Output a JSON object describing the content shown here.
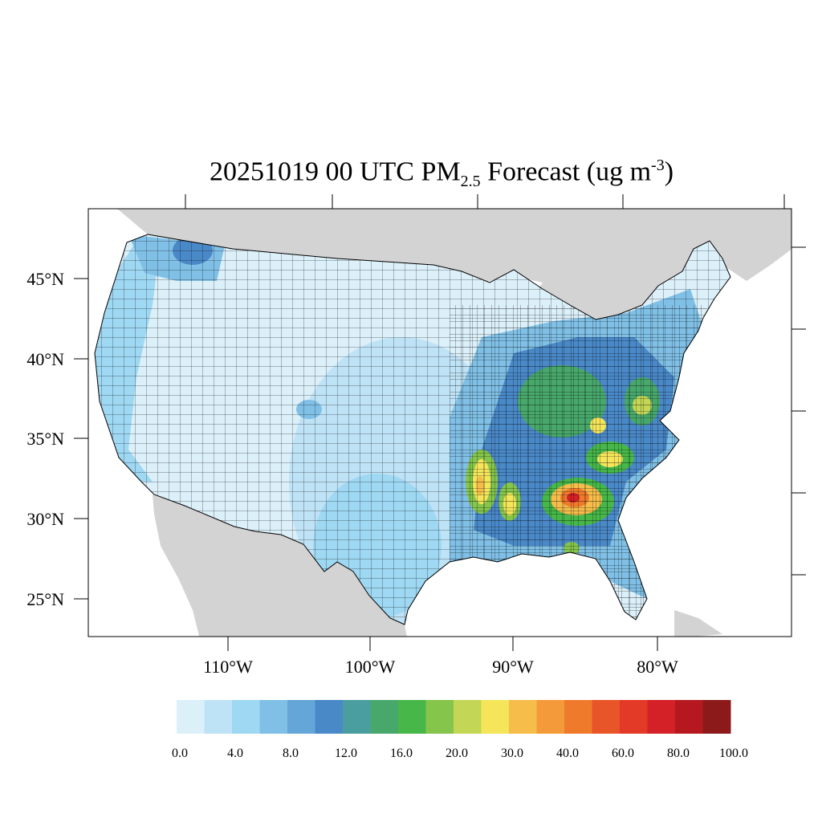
{
  "title": {
    "prefix": "20251019 00 UTC PM",
    "subscript": "2.5",
    "middle": " Forecast (ug m",
    "superscript": "-3",
    "suffix": ")"
  },
  "axes": {
    "latitude_labels": [
      "45°N",
      "40°N",
      "35°N",
      "30°N",
      "25°N"
    ],
    "longitude_labels": [
      "110°W",
      "100°W",
      "90°W",
      "80°W"
    ]
  },
  "colorbar": {
    "colors": [
      "#dcf0fa",
      "#bfe3f6",
      "#9fd8f3",
      "#80c0e6",
      "#65a6d9",
      "#4a89c8",
      "#4a9ea0",
      "#48a86b",
      "#47b749",
      "#85c54b",
      "#c3d656",
      "#f5e55a",
      "#f6bd4a",
      "#f59a3a",
      "#f07a2c",
      "#e85528",
      "#e23a26",
      "#d42027",
      "#b5191f",
      "#8c1a1b"
    ],
    "labels": [
      "0.0",
      "4.0",
      "8.0",
      "12.0",
      "16.0",
      "20.0",
      "30.0",
      "40.0",
      "60.0",
      "80.0",
      "100.0"
    ]
  },
  "map": {
    "land_outside_color": "#d3d3d3",
    "water_color": "#ffffff",
    "county_line_color": "#000000"
  }
}
